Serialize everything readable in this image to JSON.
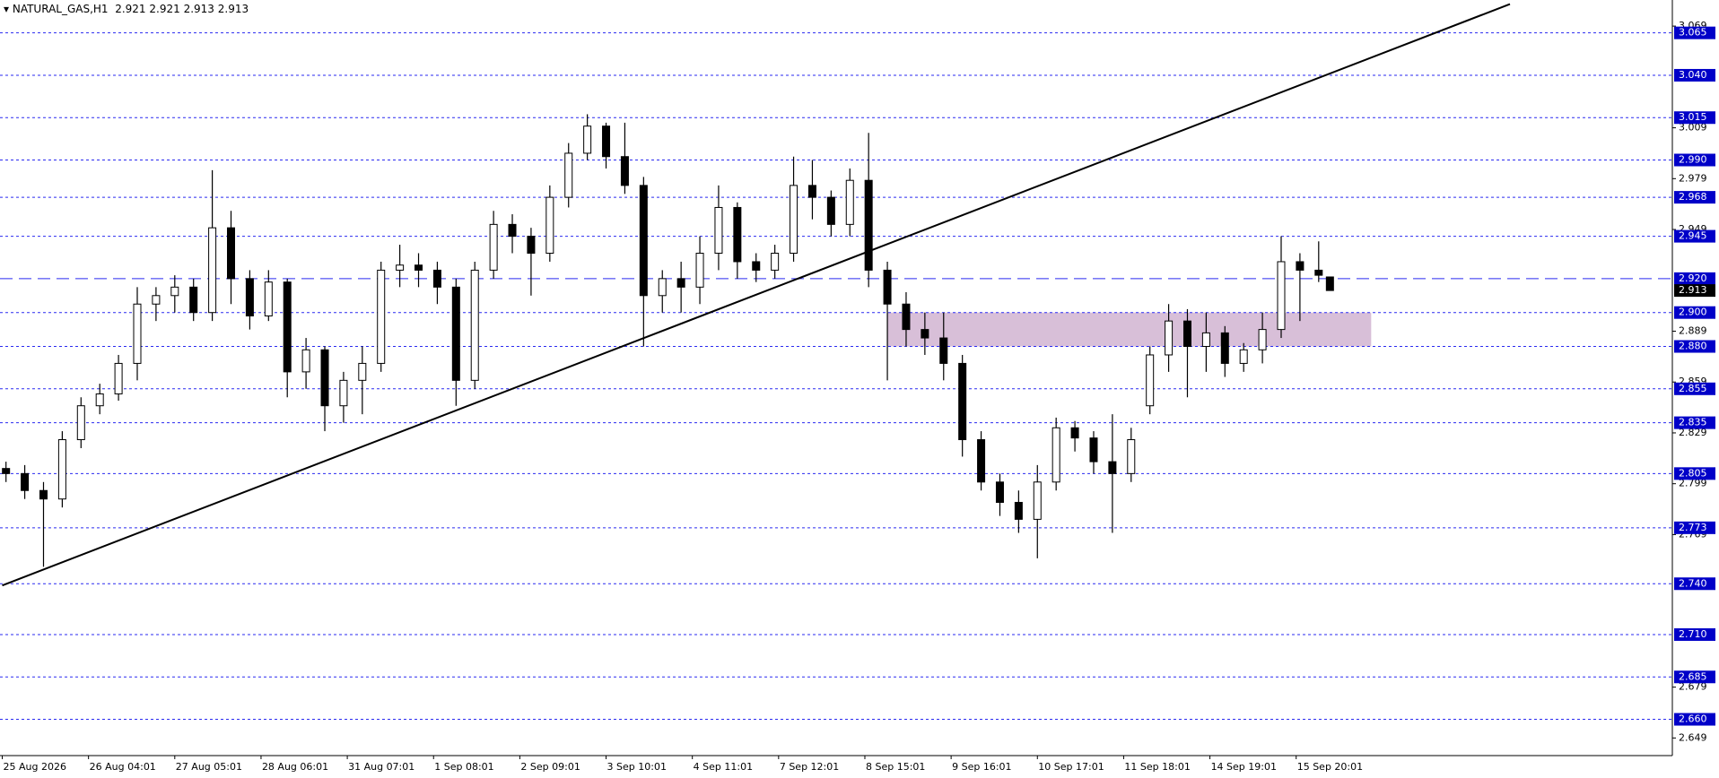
{
  "chart_data": {
    "type": "candlestick",
    "title": "NATURAL_GAS,H1",
    "x": [
      1,
      6,
      11,
      16,
      21,
      26,
      31,
      36,
      41,
      46,
      51,
      56,
      61,
      66,
      71,
      76,
      81,
      86,
      91,
      96,
      101,
      106,
      111,
      116,
      121,
      126,
      131,
      136,
      141,
      146,
      151,
      156,
      161,
      166,
      171,
      176,
      181,
      186,
      191,
      196,
      201,
      206,
      211,
      216,
      221,
      226,
      231,
      236,
      241,
      246,
      251,
      256,
      261,
      266,
      271,
      276,
      281,
      286,
      291,
      296,
      301,
      306,
      311,
      316,
      321,
      326,
      331,
      336,
      341,
      346,
      351,
      354
    ],
    "open": [
      2.808,
      2.805,
      2.795,
      2.79,
      2.825,
      2.845,
      2.852,
      2.87,
      2.905,
      2.91,
      2.915,
      2.9,
      2.95,
      2.92,
      2.898,
      2.918,
      2.865,
      2.878,
      2.845,
      2.86,
      2.87,
      2.925,
      2.928,
      2.925,
      2.915,
      2.86,
      2.925,
      2.952,
      2.945,
      2.935,
      2.968,
      2.994,
      3.01,
      2.992,
      2.975,
      2.91,
      2.92,
      2.915,
      2.935,
      2.962,
      2.93,
      2.925,
      2.935,
      2.975,
      2.968,
      2.952,
      2.978,
      2.925,
      2.905,
      2.89,
      2.885,
      2.87,
      2.825,
      2.8,
      2.788,
      2.778,
      2.8,
      2.832,
      2.826,
      2.812,
      2.805,
      2.845,
      2.875,
      2.895,
      2.88,
      2.888,
      2.87,
      2.878,
      2.89,
      2.93,
      2.925,
      2.921
    ],
    "high": [
      2.812,
      2.81,
      2.8,
      2.83,
      2.85,
      2.858,
      2.875,
      2.915,
      2.915,
      2.922,
      2.92,
      2.984,
      2.96,
      2.925,
      2.925,
      2.92,
      2.885,
      2.88,
      2.865,
      2.88,
      2.93,
      2.94,
      2.935,
      2.93,
      2.92,
      2.93,
      2.96,
      2.958,
      2.95,
      2.975,
      3.0,
      3.017,
      3.012,
      3.012,
      2.98,
      2.925,
      2.93,
      2.945,
      2.975,
      2.965,
      2.935,
      2.94,
      2.992,
      2.99,
      2.972,
      2.985,
      3.006,
      2.93,
      2.912,
      2.9,
      2.9,
      2.875,
      2.83,
      2.805,
      2.795,
      2.81,
      2.838,
      2.836,
      2.83,
      2.84,
      2.832,
      2.88,
      2.905,
      2.902,
      2.9,
      2.892,
      2.882,
      2.9,
      2.945,
      2.935,
      2.942,
      2.921
    ],
    "low": [
      2.8,
      2.79,
      2.75,
      2.785,
      2.82,
      2.84,
      2.848,
      2.86,
      2.895,
      2.9,
      2.895,
      2.895,
      2.905,
      2.89,
      2.895,
      2.85,
      2.855,
      2.83,
      2.835,
      2.84,
      2.865,
      2.915,
      2.915,
      2.905,
      2.845,
      2.855,
      2.92,
      2.935,
      2.91,
      2.93,
      2.962,
      2.99,
      2.985,
      2.97,
      2.88,
      2.9,
      2.9,
      2.905,
      2.925,
      2.92,
      2.918,
      2.92,
      2.93,
      2.955,
      2.945,
      2.945,
      2.915,
      2.86,
      2.88,
      2.875,
      2.86,
      2.815,
      2.795,
      2.78,
      2.77,
      2.755,
      2.795,
      2.818,
      2.805,
      2.77,
      2.8,
      2.84,
      2.865,
      2.85,
      2.865,
      2.862,
      2.865,
      2.87,
      2.885,
      2.895,
      2.918,
      2.913
    ],
    "close": [
      2.805,
      2.795,
      2.79,
      2.825,
      2.845,
      2.852,
      2.87,
      2.905,
      2.91,
      2.915,
      2.9,
      2.95,
      2.92,
      2.898,
      2.918,
      2.865,
      2.878,
      2.845,
      2.86,
      2.87,
      2.925,
      2.928,
      2.925,
      2.915,
      2.86,
      2.925,
      2.952,
      2.945,
      2.935,
      2.968,
      2.994,
      3.01,
      2.992,
      2.975,
      2.91,
      2.92,
      2.915,
      2.935,
      2.962,
      2.93,
      2.925,
      2.935,
      2.975,
      2.968,
      2.952,
      2.978,
      2.925,
      2.905,
      2.89,
      2.885,
      2.87,
      2.825,
      2.8,
      2.788,
      2.778,
      2.8,
      2.832,
      2.826,
      2.812,
      2.805,
      2.825,
      2.875,
      2.895,
      2.88,
      2.888,
      2.87,
      2.878,
      2.89,
      2.93,
      2.925,
      2.922,
      2.913
    ],
    "up_color": "#ffffff",
    "down_color": "#000000",
    "xlim": [
      -0.6,
      445.3
    ],
    "ylim": [
      2.6386,
      3.0844
    ],
    "xticks": [
      {
        "value": 0,
        "label": "25 Aug 2026"
      },
      {
        "value": 23,
        "label": "26 Aug 04:01"
      },
      {
        "value": 46,
        "label": "27 Aug 05:01"
      },
      {
        "value": 69,
        "label": "28 Aug 06:01"
      },
      {
        "value": 92,
        "label": "31 Aug 07:01"
      },
      {
        "value": 115,
        "label": "1 Sep 08:01"
      },
      {
        "value": 138,
        "label": "2 Sep 09:01"
      },
      {
        "value": 161,
        "label": "3 Sep 10:01"
      },
      {
        "value": 184,
        "label": "4 Sep 11:01"
      },
      {
        "value": 207,
        "label": "7 Sep 12:01"
      },
      {
        "value": 230,
        "label": "8 Sep 15:01"
      },
      {
        "value": 253,
        "label": "9 Sep 16:01"
      },
      {
        "value": 276,
        "label": "10 Sep 17:01"
      },
      {
        "value": 299,
        "label": "11 Sep 18:01"
      },
      {
        "value": 322,
        "label": "14 Sep 19:01"
      },
      {
        "value": 345,
        "label": "15 Sep 20:01"
      }
    ],
    "yticks": [
      3.069,
      3.009,
      2.979,
      2.949,
      2.889,
      2.859,
      2.829,
      2.799,
      2.769,
      2.679,
      2.649
    ],
    "levels": [
      3.065,
      {
        "value": 3.04,
        "label": "3.040"
      },
      3.015,
      {
        "value": 2.99,
        "label": "2.990"
      },
      2.968,
      2.945,
      {
        "value": 2.9,
        "label": "2.900"
      },
      {
        "value": 2.88,
        "label": "2.880"
      },
      2.855,
      2.835,
      2.805,
      2.773,
      {
        "value": 2.74,
        "label": "2.740"
      },
      {
        "value": 2.71,
        "label": "2.710"
      },
      2.685,
      {
        "value": 2.66,
        "label": "2.660"
      }
    ],
    "level_color": "#2a2af0",
    "dashed_level": {
      "value": 2.92,
      "label": "2.920"
    },
    "trendline": {
      "x": [
        0,
        402
      ],
      "y": [
        2.739,
        3.082
      ]
    },
    "zone": {
      "x": [
        236,
        365
      ],
      "y": [
        2.88,
        2.9
      ],
      "color": "#d8bfd8"
    }
  }
}
